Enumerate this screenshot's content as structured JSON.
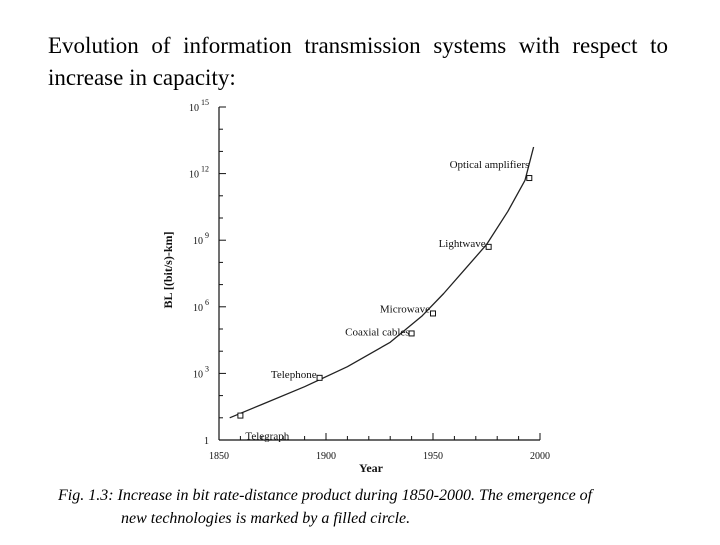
{
  "heading": "Evolution of information transmission systems with respect to increase in capacity:",
  "caption": {
    "line1": "Fig. 1.3: Increase in bit rate-distance product during 1850-2000. The emergence of",
    "line2": "new technologies is marked by a filled circle."
  },
  "chart_data": {
    "type": "line",
    "title": "",
    "xlabel": "Year",
    "ylabel": "BL [(bit/s)-km]",
    "xlim": [
      1850,
      2000
    ],
    "ylim_log10": [
      0,
      15
    ],
    "y_scale": "log",
    "grid": false,
    "x_ticks": [
      1850,
      1900,
      1950,
      2000
    ],
    "x_tick_labels": [
      "1850",
      "1900",
      "1950",
      "2000"
    ],
    "y_ticks_log10": [
      0,
      3,
      6,
      9,
      12,
      15
    ],
    "y_tick_labels": [
      {
        "base": "1",
        "exp": ""
      },
      {
        "base": "10",
        "exp": "3"
      },
      {
        "base": "10",
        "exp": "6"
      },
      {
        "base": "10",
        "exp": "9"
      },
      {
        "base": "10",
        "exp": "12"
      },
      {
        "base": "10",
        "exp": "15"
      }
    ],
    "series": [
      {
        "name": "",
        "x": [
          1855,
          1870,
          1890,
          1910,
          1930,
          1945,
          1955,
          1965,
          1975,
          1985,
          1993,
          1997
        ],
        "y_log10": [
          1.0,
          1.6,
          2.4,
          3.3,
          4.4,
          5.6,
          6.6,
          7.7,
          8.8,
          10.3,
          11.7,
          13.2
        ]
      }
    ],
    "markers": [
      {
        "label": "Telegraph",
        "x": 1860,
        "y_log10": 1.1
      },
      {
        "label": "Telephone",
        "x": 1897,
        "y_log10": 2.8
      },
      {
        "label": "Coaxial cables",
        "x": 1940,
        "y_log10": 4.8
      },
      {
        "label": "Microwave",
        "x": 1950,
        "y_log10": 5.7
      },
      {
        "label": "Lightwave",
        "x": 1976,
        "y_log10": 8.7
      },
      {
        "label": "Optical amplifiers",
        "x": 1995,
        "y_log10": 11.8
      }
    ]
  }
}
